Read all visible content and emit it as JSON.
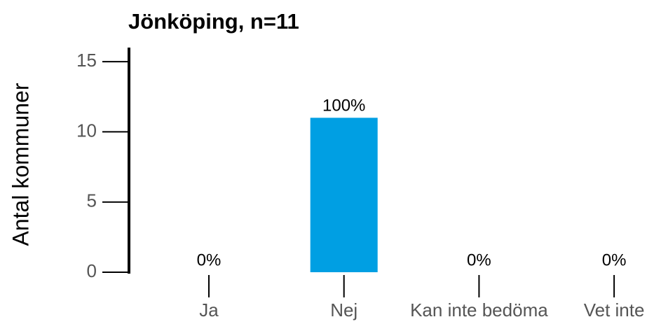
{
  "chart_data": {
    "type": "bar",
    "title": "Jönköping, n=11",
    "y_label": "Antal kommuner",
    "categories": [
      "Ja",
      "Nej",
      "Kan inte bedöma",
      "Vet inte"
    ],
    "values": [
      0,
      11,
      0,
      0
    ],
    "value_labels": [
      "0%",
      "100%",
      "0%",
      "0%"
    ],
    "color": "#009fe3",
    "ylim": [
      0,
      16
    ],
    "yticks": [
      0,
      5,
      10,
      15
    ],
    "grid": false
  }
}
